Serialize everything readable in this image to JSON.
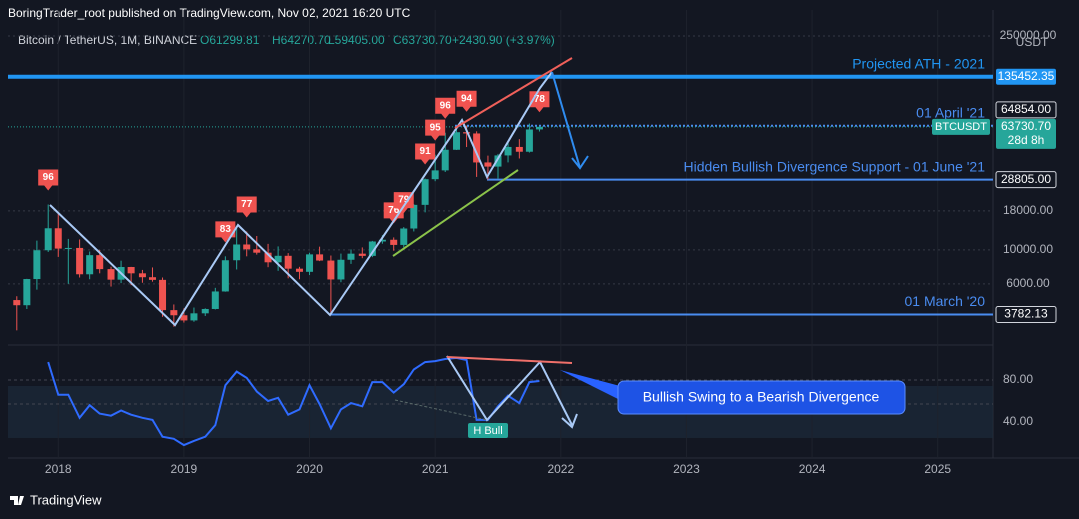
{
  "header": {
    "publisher": "BoringTrader_root published on TradingView.com, Nov 02, 2021 16:20 UTC",
    "symbol": "Bitcoin / TetherUS, 1M, BINANCE",
    "ohlc": [
      "O61299.81",
      "H64270.70",
      "L59405.00",
      "C63730.70",
      "+2430.90 (+3.97%)"
    ],
    "currency": "USDT",
    "footer": "TradingView"
  },
  "chart_data": [
    {
      "type": "candlestick",
      "name": "BTCUSDT",
      "countdown": "28d 8h",
      "up_color": "#26a69a",
      "down_color": "#ef5350",
      "log_scale": true,
      "grid": true,
      "x": [
        2017.67,
        2017.75,
        2017.83,
        2017.92,
        2018,
        2018.08,
        2018.17,
        2018.25,
        2018.33,
        2018.42,
        2018.5,
        2018.58,
        2018.67,
        2018.75,
        2018.83,
        2018.92,
        2019,
        2019.08,
        2019.17,
        2019.25,
        2019.33,
        2019.42,
        2019.5,
        2019.58,
        2019.67,
        2019.75,
        2019.83,
        2019.92,
        2020,
        2020.08,
        2020.17,
        2020.25,
        2020.33,
        2020.42,
        2020.5,
        2020.58,
        2020.67,
        2020.75,
        2020.83,
        2020.92,
        2021,
        2021.08,
        2021.17,
        2021.25,
        2021.33,
        2021.42,
        2021.5,
        2021.58,
        2021.67,
        2021.75,
        2021.83
      ],
      "open": [
        4700,
        4350,
        6450,
        9950,
        13850,
        10200,
        10300,
        6930,
        9240,
        7490,
        6390,
        7730,
        7030,
        6630,
        6370,
        4040,
        3740,
        3460,
        3850,
        4110,
        5350,
        8560,
        10850,
        10090,
        9590,
        8300,
        9150,
        7540,
        7190,
        9350,
        8520,
        6410,
        8620,
        9450,
        9140,
        11350,
        11650,
        10780,
        13800,
        19700,
        28990,
        33100,
        45140,
        58800,
        57700,
        37300,
        35040,
        41460,
        47100,
        43820,
        61299.81
      ],
      "high": [
        4980,
        6470,
        11500,
        19800,
        17200,
        11800,
        11700,
        9760,
        10000,
        7760,
        8500,
        7750,
        7400,
        7680,
        6600,
        4400,
        4150,
        4200,
        4150,
        5650,
        9080,
        13970,
        13200,
        12330,
        10950,
        10540,
        9530,
        7750,
        9580,
        10500,
        9190,
        9460,
        10070,
        10380,
        11450,
        12480,
        12070,
        14100,
        19900,
        29300,
        41950,
        58350,
        61790,
        64854,
        59600,
        41330,
        42400,
        50500,
        52950,
        67000,
        64270.7
      ],
      "low": [
        2980,
        4110,
        5500,
        9700,
        9000,
        6000,
        6600,
        6430,
        7030,
        5760,
        6070,
        5880,
        6100,
        6200,
        3650,
        3150,
        3350,
        3390,
        3700,
        4080,
        5330,
        7450,
        9080,
        9320,
        7710,
        7300,
        6520,
        6430,
        6850,
        8450,
        3782,
        6150,
        8100,
        8830,
        8970,
        10980,
        9880,
        10380,
        13200,
        17600,
        28130,
        32300,
        45000,
        47040,
        30000,
        28805,
        29280,
        37330,
        39600,
        43280,
        59405
      ],
      "close": [
        4350,
        6450,
        9950,
        13850,
        10200,
        10300,
        6930,
        9240,
        7490,
        6390,
        7730,
        7030,
        6630,
        6370,
        4040,
        3740,
        3460,
        3850,
        4110,
        5350,
        8560,
        10850,
        10090,
        9590,
        8300,
        9150,
        7540,
        7190,
        9350,
        8520,
        6410,
        8620,
        9450,
        9140,
        11350,
        11650,
        10780,
        13800,
        19700,
        28990,
        33100,
        45140,
        58800,
        57700,
        37300,
        35040,
        41460,
        47100,
        43820,
        61300,
        63730.7
      ],
      "close_label": "63730.70",
      "xlim": [
        2017.6,
        2025.44
      ],
      "xticks": [
        2018,
        2019,
        2020,
        2021,
        2022,
        2023,
        2024,
        2025
      ],
      "ylim": [
        2390,
        370000
      ],
      "yticks": [
        {
          "value": 6000,
          "label": "6000.00"
        },
        {
          "value": 10000,
          "label": "10000.00"
        },
        {
          "value": 18000,
          "label": "18000.00"
        },
        {
          "value": 250000,
          "label": "250000.00"
        }
      ],
      "levels": [
        {
          "label": "Projected ATH - 2021",
          "value": 135452.35,
          "value_label": "135452.35",
          "color": "#2196f3"
        },
        {
          "label": "01 April '21",
          "value": 64854,
          "value_label": "64854.00",
          "color": "#4a8cf0"
        },
        {
          "label": "Hidden Bullish Divergence Support - 01 June '21",
          "value": 28805,
          "value_label": "28805.00",
          "color": "#4a8cf0"
        },
        {
          "label": "01 March '20",
          "value": 3782.13,
          "value_label": "3782.13",
          "color": "#4a8cf0"
        }
      ],
      "signals": [
        {
          "x": 2017.92,
          "label": "96"
        },
        {
          "x": 2019.33,
          "label": "83"
        },
        {
          "x": 2019.5,
          "label": "77"
        },
        {
          "x": 2020.67,
          "label": "76"
        },
        {
          "x": 2020.75,
          "label": "79"
        },
        {
          "x": 2020.92,
          "label": "91"
        },
        {
          "x": 2021,
          "label": "95"
        },
        {
          "x": 2021.08,
          "label": "96"
        },
        {
          "x": 2021.25,
          "label": "94"
        },
        {
          "x": 2021.83,
          "label": "78"
        }
      ]
    },
    {
      "type": "line",
      "name": "RSI",
      "color": "#2f6bff",
      "values": [
        null,
        null,
        null,
        97,
        66,
        66,
        44,
        56,
        48,
        46,
        51,
        47,
        44,
        42,
        26,
        24,
        18,
        22,
        26,
        37,
        75,
        88,
        82,
        69,
        60,
        63,
        47,
        52,
        75,
        57,
        34,
        52,
        58,
        55,
        78,
        78,
        68,
        76,
        90,
        97,
        98,
        100,
        101,
        99,
        42,
        42,
        55,
        65,
        58,
        78,
        79
      ],
      "ylim": [
        8.6,
        113.3
      ],
      "yticks": [
        {
          "value": 40,
          "label": "40.00"
        },
        {
          "value": 80,
          "label": "80.00"
        }
      ],
      "annotations": [
        "Bullish Swing to a Bearish Divergence",
        "H Bull"
      ]
    }
  ]
}
